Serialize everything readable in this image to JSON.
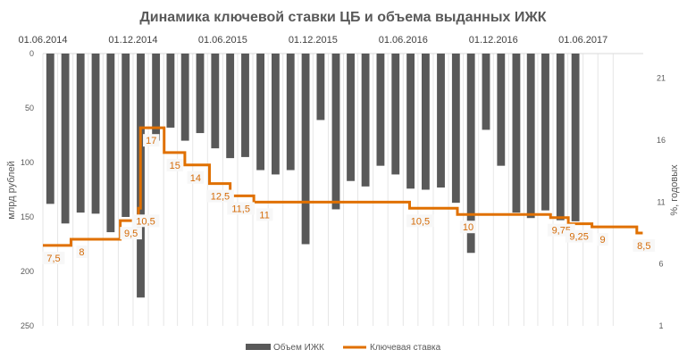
{
  "chart_data": {
    "type": "bar+line",
    "title": "Динамика ключевой ставки ЦБ и объема выданных ИЖК",
    "ylabel_left": "млрд рублей",
    "ylabel_right": "%, годовых",
    "left_axis": {
      "ticks": [
        "0",
        "50",
        "100",
        "150",
        "200",
        "250"
      ],
      "inverted": true,
      "ylim": [
        0,
        250
      ]
    },
    "right_axis": {
      "ticks": [
        "1",
        "6",
        "11",
        "16",
        "21"
      ],
      "ylim": [
        1,
        23
      ]
    },
    "top_axis_labels": [
      "01.06.2014",
      "01.12.2014",
      "01.06.2015",
      "01.12.2015",
      "01.06.2016",
      "01.12.2016",
      "01.06.2017"
    ],
    "x_range": [
      "2014-06",
      "2017-09"
    ],
    "series": [
      {
        "name": "Объем ИЖК",
        "type": "bar",
        "color": "#595959",
        "x": [
          "2014-06",
          "2014-07",
          "2014-08",
          "2014-09",
          "2014-10",
          "2014-11",
          "2014-12",
          "2015-01",
          "2015-02",
          "2015-03",
          "2015-04",
          "2015-05",
          "2015-06",
          "2015-07",
          "2015-08",
          "2015-09",
          "2015-10",
          "2015-11",
          "2015-12",
          "2016-01",
          "2016-02",
          "2016-03",
          "2016-04",
          "2016-05",
          "2016-06",
          "2016-07",
          "2016-08",
          "2016-09",
          "2016-10",
          "2016-11",
          "2016-12",
          "2017-01",
          "2017-02",
          "2017-03",
          "2017-04",
          "2017-05",
          "2017-06",
          "2017-07"
        ],
        "values": [
          138,
          156,
          146,
          147,
          164,
          150,
          224,
          80,
          68,
          80,
          73,
          87,
          96,
          95,
          107,
          111,
          107,
          175,
          61,
          143,
          117,
          122,
          103,
          111,
          124,
          125,
          123,
          137,
          183,
          70,
          103,
          146,
          151,
          144,
          153,
          154,
          null,
          null
        ]
      },
      {
        "name": "Ключевая ставка",
        "type": "step-line",
        "color": "#e07000",
        "points": [
          {
            "date": "2014-06-01",
            "value": 7.5
          },
          {
            "date": "2014-07-28",
            "value": 8
          },
          {
            "date": "2014-11-05",
            "value": 9.5
          },
          {
            "date": "2014-12-12",
            "value": 10.5
          },
          {
            "date": "2014-12-16",
            "value": 17
          },
          {
            "date": "2015-02-02",
            "value": 15
          },
          {
            "date": "2015-03-16",
            "value": 14
          },
          {
            "date": "2015-05-05",
            "value": 12.5
          },
          {
            "date": "2015-06-16",
            "value": 11.5
          },
          {
            "date": "2015-08-03",
            "value": 11
          },
          {
            "date": "2016-06-14",
            "value": 10.5
          },
          {
            "date": "2016-09-19",
            "value": 10
          },
          {
            "date": "2017-03-27",
            "value": 9.75
          },
          {
            "date": "2017-05-02",
            "value": 9.25
          },
          {
            "date": "2017-06-19",
            "value": 9
          },
          {
            "date": "2017-09-18",
            "value": 8.5
          },
          {
            "date": "2017-09-30",
            "value": 8.5
          }
        ]
      }
    ],
    "legend": {
      "position": "bottom",
      "entries": [
        "Объем ИЖК",
        "Ключевая ставка"
      ]
    },
    "grid": "vertical"
  }
}
